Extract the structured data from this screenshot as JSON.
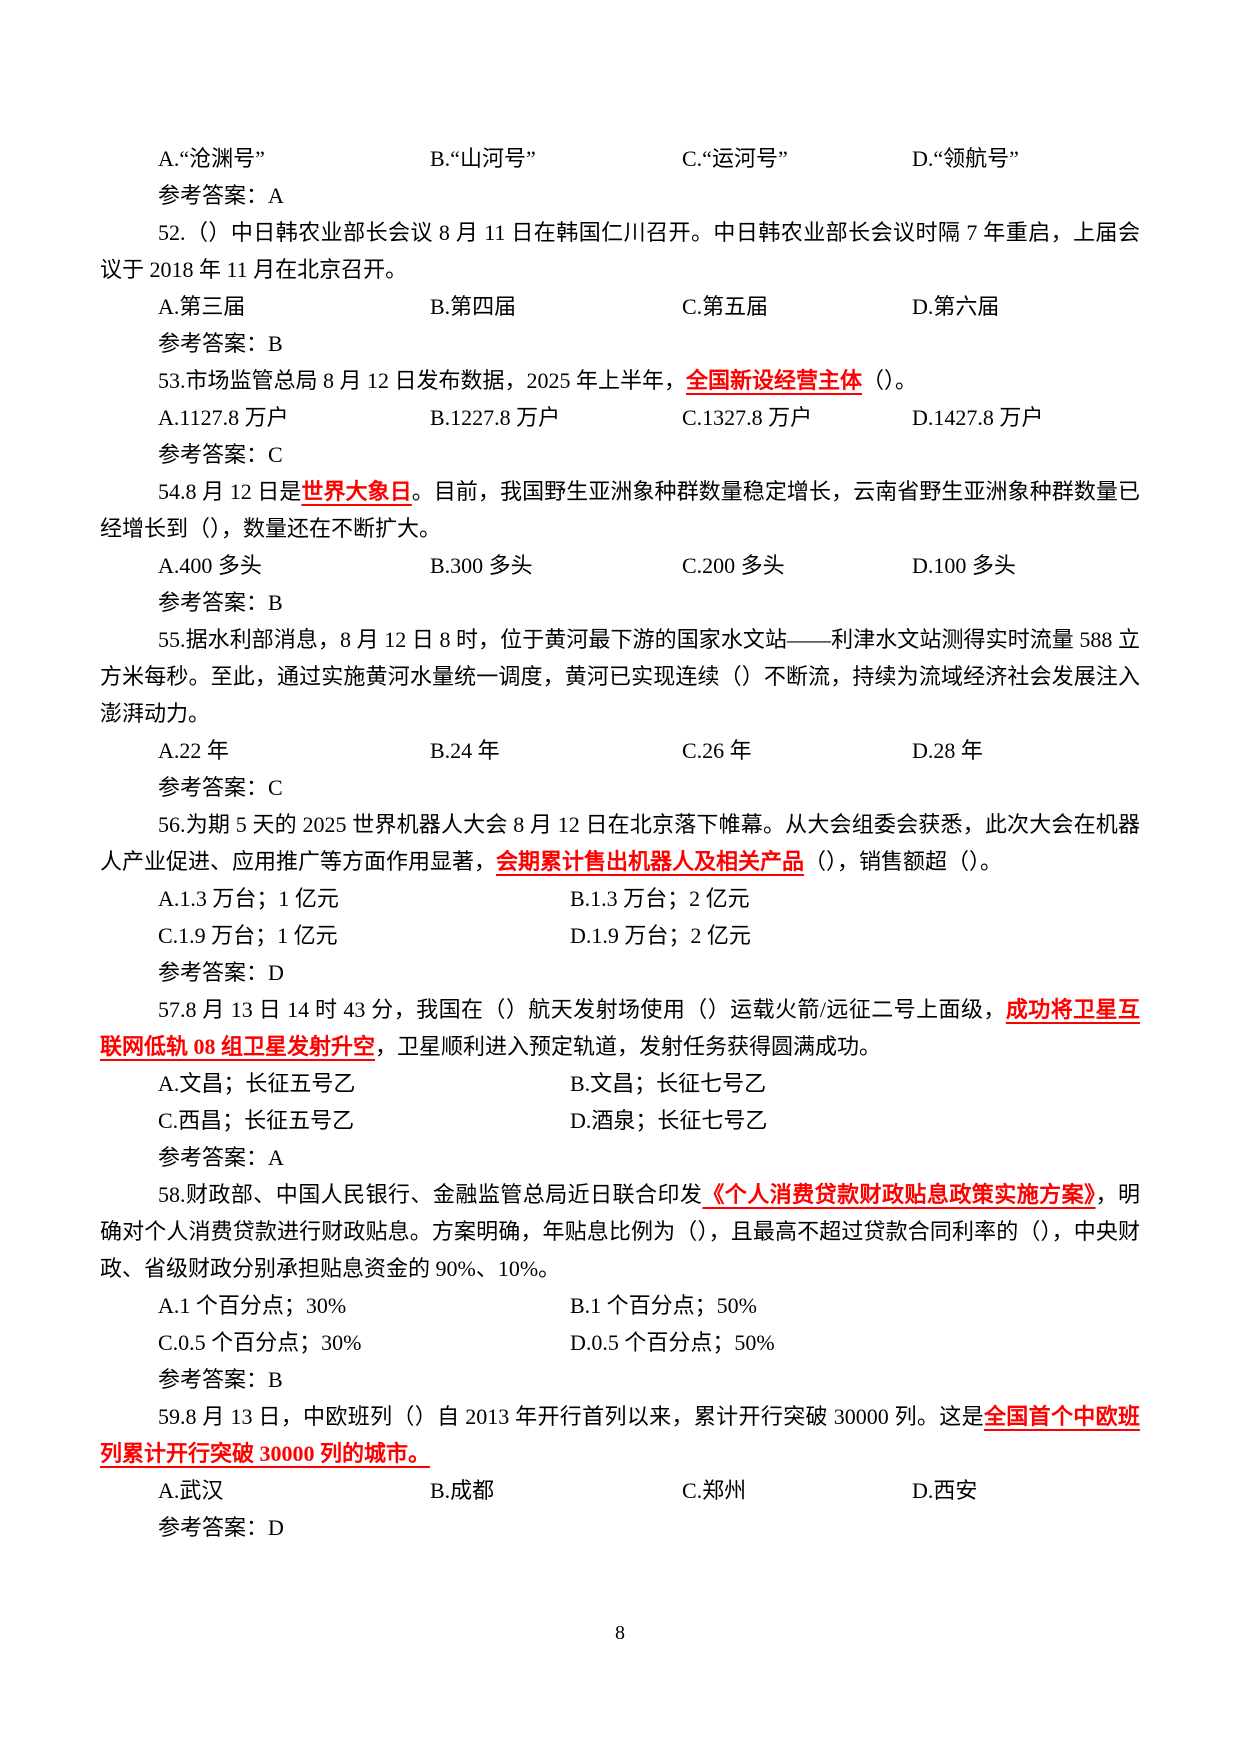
{
  "styles": {
    "text_color": "#000000",
    "highlight_color": "#ff0000",
    "background": "#ffffff"
  },
  "page_number": "8",
  "q51": {
    "options": {
      "a": "A.“沧渊号”",
      "b": "B.“山河号”",
      "c": "C.“运河号”",
      "d": "D.“领航号”"
    },
    "answer": "参考答案：A"
  },
  "q52": {
    "text": "52.（）中日韩农业部长会议 8 月 11 日在韩国仁川召开。中日韩农业部长会议时隔 7 年重启，上届会议于 2018 年 11 月在北京召开。",
    "options": {
      "a": "A.第三届",
      "b": "B.第四届",
      "c": "C.第五届",
      "d": "D.第六届"
    },
    "answer": "参考答案：B"
  },
  "q53": {
    "pre": "53.市场监管总局 8 月 12 日发布数据，2025 年上半年，",
    "highlight": "全国新设经营主体",
    "post": "（）。",
    "options": {
      "a": "A.1127.8 万户",
      "b": "B.1227.8 万户",
      "c": "C.1327.8 万户",
      "d": "D.1427.8 万户"
    },
    "answer": "参考答案：C"
  },
  "q54": {
    "pre": "54.8 月 12 日是",
    "highlight": "世界大象日",
    "post": "。目前，我国野生亚洲象种群数量稳定增长，云南省野生亚洲象种群数量已经增长到（），数量还在不断扩大。",
    "options": {
      "a": "A.400 多头",
      "b": "B.300 多头",
      "c": "C.200 多头",
      "d": "D.100 多头"
    },
    "answer": "参考答案：B"
  },
  "q55": {
    "text": "55.据水利部消息，8 月 12 日 8 时，位于黄河最下游的国家水文站——利津水文站测得实时流量 588 立方米每秒。至此，通过实施黄河水量统一调度，黄河已实现连续（）不断流，持续为流域经济社会发展注入澎湃动力。",
    "options": {
      "a": "A.22 年",
      "b": "B.24 年",
      "c": "C.26 年",
      "d": "D.28 年"
    },
    "answer": "参考答案：C"
  },
  "q56": {
    "pre": "56.为期 5 天的 2025 世界机器人大会 8 月 12 日在北京落下帷幕。从大会组委会获悉，此次大会在机器人产业促进、应用推广等方面作用显著，",
    "highlight": "会期累计售出机器人及相关产品",
    "post": "（），销售额超（）。",
    "options": {
      "a": "A.1.3 万台；1 亿元",
      "b": "B.1.3 万台；2 亿元",
      "c": "C.1.9 万台；1 亿元",
      "d": "D.1.9 万台；2 亿元"
    },
    "answer": "参考答案：D"
  },
  "q57": {
    "pre": "57.8 月 13 日 14 时 43 分，我国在（）航天发射场使用（）运载火箭/远征二号上面级，",
    "highlight": "成功将卫星互联网低轨 08 组卫星发射升空",
    "post": "，卫星顺利进入预定轨道，发射任务获得圆满成功。",
    "options": {
      "a": "A.文昌；长征五号乙",
      "b": "B.文昌；长征七号乙",
      "c": "C.西昌；长征五号乙",
      "d": "D.酒泉；长征七号乙"
    },
    "answer": "参考答案：A"
  },
  "q58": {
    "pre": "58.财政部、中国人民银行、金融监管总局近日联合印发",
    "highlight": "《个人消费贷款财政贴息政策实施方案》",
    "post": "，明确对个人消费贷款进行财政贴息。方案明确，年贴息比例为（），且最高不超过贷款合同利率的（），中央财政、省级财政分别承担贴息资金的 90%、10%。",
    "options": {
      "a": "A.1 个百分点；30%",
      "b": "B.1 个百分点；50%",
      "c": "C.0.5 个百分点；30%",
      "d": "D.0.5 个百分点；50%"
    },
    "answer": "参考答案：B"
  },
  "q59": {
    "pre": "59.8 月 13 日，中欧班列（）自 2013 年开行首列以来，累计开行突破 30000 列。这是",
    "highlight": "全国首个中欧班列累计开行突破 30000 列的城市。",
    "post": "",
    "options": {
      "a": "A.武汉",
      "b": "B.成都",
      "c": "C.郑州",
      "d": "D.西安"
    },
    "answer": "参考答案：D"
  }
}
